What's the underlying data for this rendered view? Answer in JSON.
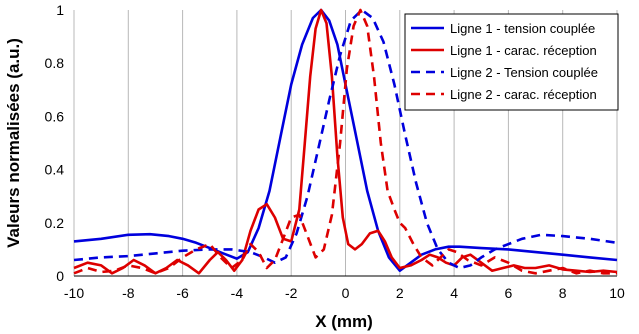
{
  "chart_data": {
    "type": "line",
    "title": "",
    "xlabel": "X (mm)",
    "ylabel": "Valeurs normalisées (a.u.)",
    "xlim": [
      -10,
      10
    ],
    "ylim": [
      0,
      1
    ],
    "xticks": [
      -10,
      -8,
      -6,
      -4,
      -2,
      0,
      2,
      4,
      6,
      8,
      10
    ],
    "yticks": [
      0,
      0.2,
      0.4,
      0.6,
      0.8,
      1
    ],
    "xtick_labels": [
      "-10",
      "-8",
      "-6",
      "-4",
      "-2",
      "0",
      "2",
      "4",
      "6",
      "8",
      "10"
    ],
    "ytick_labels": [
      "0",
      "0.2",
      "0.4",
      "0.6",
      "0.8",
      "1"
    ],
    "grid": "vertical",
    "legend_position": "top-right",
    "series": [
      {
        "name": "Ligne 1 - tension couplée",
        "color": "#0000dd",
        "style": "solid",
        "points": [
          [
            -10,
            0.13
          ],
          [
            -9,
            0.14
          ],
          [
            -8,
            0.155
          ],
          [
            -7.2,
            0.157
          ],
          [
            -6.5,
            0.15
          ],
          [
            -6,
            0.14
          ],
          [
            -5.5,
            0.125
          ],
          [
            -5,
            0.105
          ],
          [
            -4.5,
            0.085
          ],
          [
            -4,
            0.065
          ],
          [
            -3.6,
            0.09
          ],
          [
            -3.2,
            0.18
          ],
          [
            -2.8,
            0.32
          ],
          [
            -2.4,
            0.52
          ],
          [
            -2,
            0.72
          ],
          [
            -1.6,
            0.87
          ],
          [
            -1.2,
            0.97
          ],
          [
            -0.9,
            1.0
          ],
          [
            -0.6,
            0.96
          ],
          [
            -0.3,
            0.87
          ],
          [
            0,
            0.72
          ],
          [
            0.4,
            0.52
          ],
          [
            0.8,
            0.32
          ],
          [
            1.2,
            0.17
          ],
          [
            1.6,
            0.07
          ],
          [
            2,
            0.02
          ],
          [
            2.4,
            0.05
          ],
          [
            2.8,
            0.08
          ],
          [
            3.3,
            0.1
          ],
          [
            3.8,
            0.11
          ],
          [
            4.2,
            0.11
          ],
          [
            5,
            0.105
          ],
          [
            6,
            0.1
          ],
          [
            7,
            0.09
          ],
          [
            8,
            0.08
          ],
          [
            9,
            0.07
          ],
          [
            10,
            0.06
          ]
        ]
      },
      {
        "name": "Ligne 1 - carac. réception",
        "color": "#dd0000",
        "style": "solid",
        "points": [
          [
            -10,
            0.03
          ],
          [
            -9.5,
            0.05
          ],
          [
            -9,
            0.04
          ],
          [
            -8.6,
            0.01
          ],
          [
            -8.2,
            0.03
          ],
          [
            -7.8,
            0.06
          ],
          [
            -7.4,
            0.04
          ],
          [
            -7,
            0.01
          ],
          [
            -6.6,
            0.03
          ],
          [
            -6.2,
            0.06
          ],
          [
            -5.8,
            0.04
          ],
          [
            -5.4,
            0.01
          ],
          [
            -5,
            0.06
          ],
          [
            -4.7,
            0.09
          ],
          [
            -4.4,
            0.06
          ],
          [
            -4.1,
            0.02
          ],
          [
            -3.8,
            0.06
          ],
          [
            -3.5,
            0.17
          ],
          [
            -3.2,
            0.25
          ],
          [
            -2.9,
            0.27
          ],
          [
            -2.6,
            0.22
          ],
          [
            -2.3,
            0.14
          ],
          [
            -2,
            0.13
          ],
          [
            -1.7,
            0.25
          ],
          [
            -1.5,
            0.5
          ],
          [
            -1.3,
            0.75
          ],
          [
            -1.1,
            0.93
          ],
          [
            -0.9,
            1.0
          ],
          [
            -0.7,
            0.95
          ],
          [
            -0.5,
            0.75
          ],
          [
            -0.3,
            0.45
          ],
          [
            -0.1,
            0.22
          ],
          [
            0.1,
            0.12
          ],
          [
            0.35,
            0.1
          ],
          [
            0.6,
            0.12
          ],
          [
            0.9,
            0.16
          ],
          [
            1.2,
            0.17
          ],
          [
            1.45,
            0.13
          ],
          [
            1.7,
            0.07
          ],
          [
            2,
            0.03
          ],
          [
            2.4,
            0.04
          ],
          [
            2.8,
            0.06
          ],
          [
            3.1,
            0.08
          ],
          [
            3.4,
            0.07
          ],
          [
            3.7,
            0.05
          ],
          [
            4,
            0.04
          ],
          [
            4.3,
            0.07
          ],
          [
            4.6,
            0.08
          ],
          [
            5,
            0.05
          ],
          [
            5.4,
            0.02
          ],
          [
            5.8,
            0.03
          ],
          [
            6.2,
            0.04
          ],
          [
            6.6,
            0.03
          ],
          [
            7,
            0.03
          ],
          [
            7.5,
            0.04
          ],
          [
            8,
            0.025
          ],
          [
            8.5,
            0.02
          ],
          [
            9,
            0.015
          ],
          [
            9.5,
            0.02
          ],
          [
            10,
            0.015
          ]
        ]
      },
      {
        "name": "Ligne 2 - Tension couplée",
        "color": "#0000dd",
        "style": "dashed",
        "points": [
          [
            -10,
            0.06
          ],
          [
            -9,
            0.07
          ],
          [
            -8,
            0.075
          ],
          [
            -7,
            0.085
          ],
          [
            -6,
            0.095
          ],
          [
            -5,
            0.1
          ],
          [
            -4.2,
            0.1
          ],
          [
            -3.5,
            0.09
          ],
          [
            -3,
            0.07
          ],
          [
            -2.6,
            0.05
          ],
          [
            -2.2,
            0.07
          ],
          [
            -1.8,
            0.16
          ],
          [
            -1.4,
            0.3
          ],
          [
            -1,
            0.48
          ],
          [
            -0.6,
            0.66
          ],
          [
            -0.2,
            0.83
          ],
          [
            0.2,
            0.96
          ],
          [
            0.6,
            1.0
          ],
          [
            1,
            0.97
          ],
          [
            1.4,
            0.88
          ],
          [
            1.8,
            0.72
          ],
          [
            2.2,
            0.53
          ],
          [
            2.6,
            0.35
          ],
          [
            3,
            0.2
          ],
          [
            3.4,
            0.1
          ],
          [
            3.8,
            0.05
          ],
          [
            4.2,
            0.03
          ],
          [
            4.6,
            0.04
          ],
          [
            5,
            0.07
          ],
          [
            5.5,
            0.1
          ],
          [
            6.5,
            0.14
          ],
          [
            7.2,
            0.155
          ],
          [
            8,
            0.15
          ],
          [
            9,
            0.14
          ],
          [
            10,
            0.125
          ]
        ]
      },
      {
        "name": "Ligne 2 - carac. réception",
        "color": "#dd0000",
        "style": "dashed",
        "points": [
          [
            -10,
            0.01
          ],
          [
            -9.5,
            0.03
          ],
          [
            -9,
            0.015
          ],
          [
            -8.5,
            0.02
          ],
          [
            -8,
            0.04
          ],
          [
            -7.5,
            0.03
          ],
          [
            -7,
            0.01
          ],
          [
            -6.5,
            0.03
          ],
          [
            -6,
            0.07
          ],
          [
            -5.5,
            0.1
          ],
          [
            -5,
            0.12
          ],
          [
            -4.6,
            0.07
          ],
          [
            -4.2,
            0.03
          ],
          [
            -3.8,
            0.06
          ],
          [
            -3.5,
            0.12
          ],
          [
            -3.2,
            0.09
          ],
          [
            -2.9,
            0.03
          ],
          [
            -2.6,
            0.06
          ],
          [
            -2.3,
            0.14
          ],
          [
            -2,
            0.22
          ],
          [
            -1.7,
            0.23
          ],
          [
            -1.4,
            0.15
          ],
          [
            -1.1,
            0.07
          ],
          [
            -0.8,
            0.1
          ],
          [
            -0.5,
            0.23
          ],
          [
            -0.2,
            0.5
          ],
          [
            0.05,
            0.78
          ],
          [
            0.3,
            0.94
          ],
          [
            0.55,
            1.0
          ],
          [
            0.8,
            0.94
          ],
          [
            1.05,
            0.75
          ],
          [
            1.3,
            0.5
          ],
          [
            1.55,
            0.32
          ],
          [
            1.8,
            0.25
          ],
          [
            2,
            0.2
          ],
          [
            2.2,
            0.18
          ],
          [
            2.5,
            0.12
          ],
          [
            2.8,
            0.07
          ],
          [
            3.2,
            0.04
          ],
          [
            3.5,
            0.07
          ],
          [
            3.8,
            0.1
          ],
          [
            4.1,
            0.09
          ],
          [
            4.5,
            0.06
          ],
          [
            5,
            0.04
          ],
          [
            5.5,
            0.07
          ],
          [
            6,
            0.05
          ],
          [
            6.5,
            0.02
          ],
          [
            7,
            0.01
          ],
          [
            7.5,
            0.02
          ],
          [
            8,
            0.03
          ],
          [
            8.5,
            0.01
          ],
          [
            9,
            0.02
          ],
          [
            9.5,
            0.01
          ],
          [
            10,
            0.01
          ]
        ]
      }
    ]
  }
}
